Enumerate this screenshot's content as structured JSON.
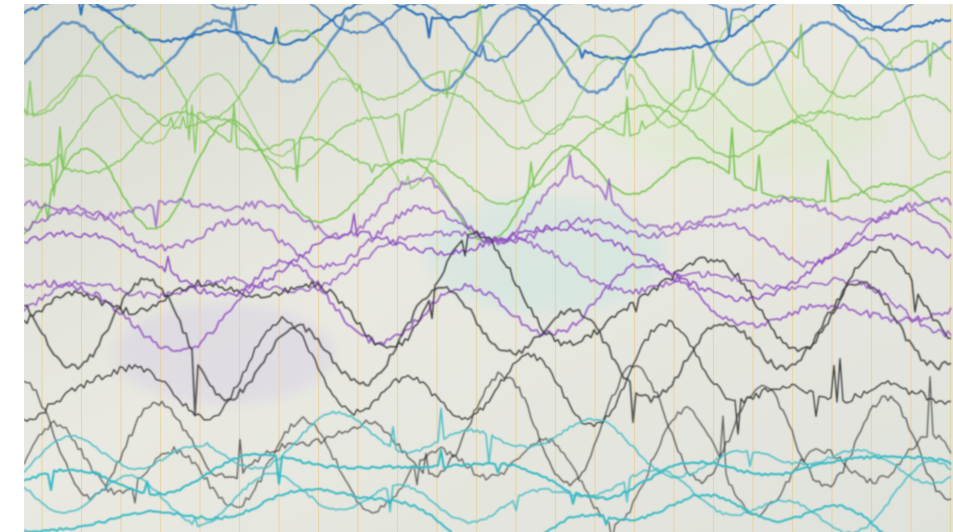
{
  "scene": {
    "subject": "eeg-waveform-screen",
    "colors": {
      "background": "#e6e7de",
      "grid_vertical": "#e9c986",
      "blue": "#1f68b6",
      "green": "#7bc653",
      "purple": "#8e4cc1",
      "black": "#2a2a2a",
      "cyan": "#39b9c4"
    },
    "trace_groups": [
      {
        "name": "blue-channels",
        "color_key": "blue",
        "count": 3
      },
      {
        "name": "green-channels",
        "color_key": "green",
        "count": 5
      },
      {
        "name": "purple-channels",
        "color_key": "purple",
        "count": 5
      },
      {
        "name": "black-channels",
        "color_key": "black",
        "count": 5
      },
      {
        "name": "cyan-channels",
        "color_key": "cyan",
        "count": 4
      }
    ]
  }
}
